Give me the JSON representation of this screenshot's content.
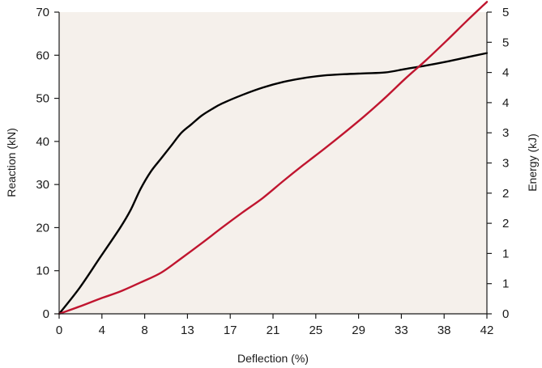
{
  "chart_data": {
    "type": "line",
    "title": "",
    "xlabel": "Deflection (%)",
    "ylabel": "Reaction (kN)",
    "y2label": "Energy (kJ)",
    "xlim": [
      0,
      42
    ],
    "ylim": [
      0,
      70
    ],
    "y2lim": [
      0,
      5
    ],
    "x_ticks": [
      0,
      4,
      8,
      13,
      17,
      21,
      25,
      29,
      33,
      38,
      42
    ],
    "x_tick_values": [
      0,
      4.2,
      8.4,
      12.6,
      16.8,
      21,
      25.2,
      29.4,
      33.6,
      37.8,
      42
    ],
    "y_ticks": [
      0,
      10,
      20,
      30,
      40,
      50,
      60,
      70
    ],
    "y2_ticks": [
      "0",
      "1",
      "1",
      "2",
      "2",
      "3",
      "3",
      "4",
      "4",
      "5",
      "5"
    ],
    "y2_tick_values": [
      0,
      0.5,
      1,
      1.5,
      2,
      2.5,
      3,
      3.5,
      4,
      4.5,
      5
    ],
    "grid": false,
    "colors": {
      "plot_background": "#f5f0eb",
      "reaction": "#000000",
      "energy": "#c0152f"
    },
    "series": [
      {
        "axis": "left",
        "color": "#000000",
        "x": [
          0,
          2,
          4,
          6,
          7,
          8,
          9,
          10,
          11,
          12,
          13,
          14,
          15,
          16,
          18,
          20,
          22,
          24,
          26,
          28,
          30,
          32,
          34,
          36,
          38,
          40,
          42
        ],
        "values": [
          0,
          6,
          13,
          20,
          24,
          29,
          33,
          36,
          39,
          42,
          44,
          46,
          47.5,
          48.8,
          50.8,
          52.5,
          53.8,
          54.7,
          55.3,
          55.6,
          55.8,
          56,
          56.8,
          57.6,
          58.5,
          59.5,
          60.5
        ]
      },
      {
        "axis": "right",
        "color": "#c0152f",
        "x": [
          0,
          2,
          4,
          6,
          8,
          10,
          12,
          14,
          16,
          18,
          20,
          22,
          24,
          26,
          28,
          30,
          32,
          34,
          36,
          38,
          40,
          42
        ],
        "values": [
          0,
          0.12,
          0.25,
          0.37,
          0.52,
          0.68,
          0.92,
          1.17,
          1.43,
          1.68,
          1.92,
          2.2,
          2.47,
          2.73,
          3.0,
          3.28,
          3.58,
          3.9,
          4.2,
          4.52,
          4.85,
          5.17
        ]
      }
    ]
  }
}
